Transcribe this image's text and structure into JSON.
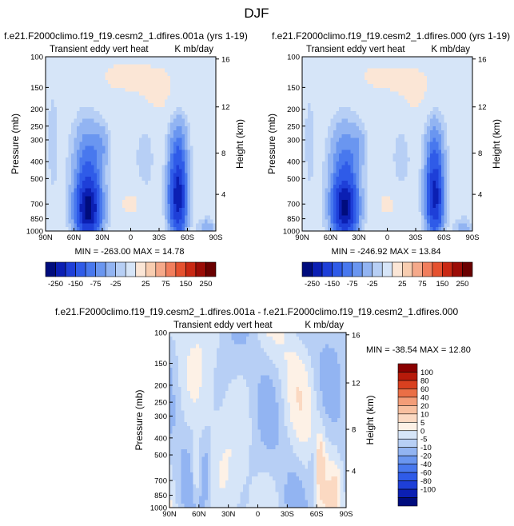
{
  "figure": {
    "suptitle": "DJF"
  },
  "colors": {
    "panel_levels": [
      -250,
      -200,
      -150,
      -100,
      -75,
      -50,
      -25,
      -10,
      10,
      25,
      50,
      75,
      100,
      150,
      200,
      250
    ],
    "panel_palette": [
      "#000c7d",
      "#0b1fb3",
      "#1e3fd8",
      "#2f5be8",
      "#4878ee",
      "#6a96f0",
      "#92b4f2",
      "#b7cff5",
      "#d6e5f8",
      "#fbe6d6",
      "#f8cdb0",
      "#f5a98a",
      "#f17e5d",
      "#e5512f",
      "#c92813",
      "#9b0c06",
      "#6a0000"
    ],
    "diff_levels": [
      -100,
      -80,
      -60,
      -40,
      -20,
      -10,
      -5,
      0,
      5,
      10,
      20,
      40,
      60,
      80,
      100
    ],
    "diff_palette": [
      "#000c7d",
      "#0b1fb3",
      "#1e3fd8",
      "#2f5be8",
      "#4878ee",
      "#6a96f0",
      "#92b4f2",
      "#b7cff5",
      "#d6e5f8",
      "#fdf1e6",
      "#fbd9c2",
      "#f8c0a0",
      "#f39d78",
      "#ea6f46",
      "#d9401f",
      "#b71a0a",
      "#8a0000"
    ]
  },
  "chart_data": [
    {
      "type": "heatmap",
      "id": "panel-1",
      "title_left": "f.e21.F2000climo.f19_f19.cesm2_1.dfires.001a (yrs 1-19)",
      "subtitle_left": "Transient eddy vert heat",
      "subtitle_right": "K mb/day",
      "ylabel": "Pressure (mb)",
      "ylabel_right": "Height (km)",
      "x_ticks": [
        "90N",
        "60N",
        "30N",
        "0",
        "30S",
        "60S",
        "90S"
      ],
      "xlim": [
        90,
        -90
      ],
      "y_ticks": [
        100,
        150,
        200,
        250,
        300,
        400,
        500,
        700,
        850,
        1000
      ],
      "ylim": [
        100,
        1000
      ],
      "y_scale": "log",
      "height_ticks": [
        16,
        12,
        8,
        4
      ],
      "stats": "MIN = -263.00   MAX = 14.78",
      "min": -263.0,
      "max": 14.78,
      "colorbar_labels": [
        "-250",
        "-150",
        "-75",
        "-25",
        "25",
        "75",
        "150",
        "250"
      ],
      "colorbar_orientation": "horizontal"
    },
    {
      "type": "heatmap",
      "id": "panel-2",
      "title_left": "f.e21.F2000climo.f19_f19.cesm2_1.dfires.000 (yrs 1-19)",
      "subtitle_left": "Transient eddy vert heat",
      "subtitle_right": "K mb/day",
      "ylabel": "Pressure (mb)",
      "ylabel_right": "Height (km)",
      "x_ticks": [
        "90N",
        "60N",
        "30N",
        "0",
        "30S",
        "60S",
        "90S"
      ],
      "xlim": [
        90,
        -90
      ],
      "y_ticks": [
        100,
        150,
        200,
        250,
        300,
        400,
        500,
        700,
        850,
        1000
      ],
      "ylim": [
        100,
        1000
      ],
      "y_scale": "log",
      "height_ticks": [
        16,
        12,
        8,
        4
      ],
      "stats": "MIN = -246.92   MAX = 13.84",
      "min": -246.92,
      "max": 13.84,
      "colorbar_labels": [
        "-250",
        "-150",
        "-75",
        "-25",
        "25",
        "75",
        "150",
        "250"
      ],
      "colorbar_orientation": "horizontal"
    },
    {
      "type": "heatmap",
      "id": "panel-diff",
      "title_left": "f.e21.F2000climo.f19_f19.cesm2_1.dfires.001a - f.e21.F2000climo.f19_f19.cesm2_1.dfires.000",
      "subtitle_left": "Transient eddy vert heat",
      "subtitle_right": "K mb/day",
      "ylabel": "Pressure (mb)",
      "ylabel_right": "Height (km)",
      "x_ticks": [
        "90N",
        "60N",
        "30N",
        "0",
        "30S",
        "60S",
        "90S"
      ],
      "xlim": [
        90,
        -90
      ],
      "y_ticks": [
        100,
        150,
        200,
        250,
        300,
        400,
        500,
        700,
        850,
        1000
      ],
      "ylim": [
        100,
        1000
      ],
      "y_scale": "log",
      "height_ticks": [
        16,
        12,
        8,
        4
      ],
      "stats": "MIN = -38.54   MAX = 12.80",
      "min": -38.54,
      "max": 12.8,
      "colorbar_labels": [
        "100",
        "80",
        "60",
        "40",
        "20",
        "10",
        "5",
        "0",
        "-5",
        "-10",
        "-20",
        "-40",
        "-60",
        "-80",
        "-100"
      ],
      "colorbar_orientation": "vertical"
    }
  ]
}
